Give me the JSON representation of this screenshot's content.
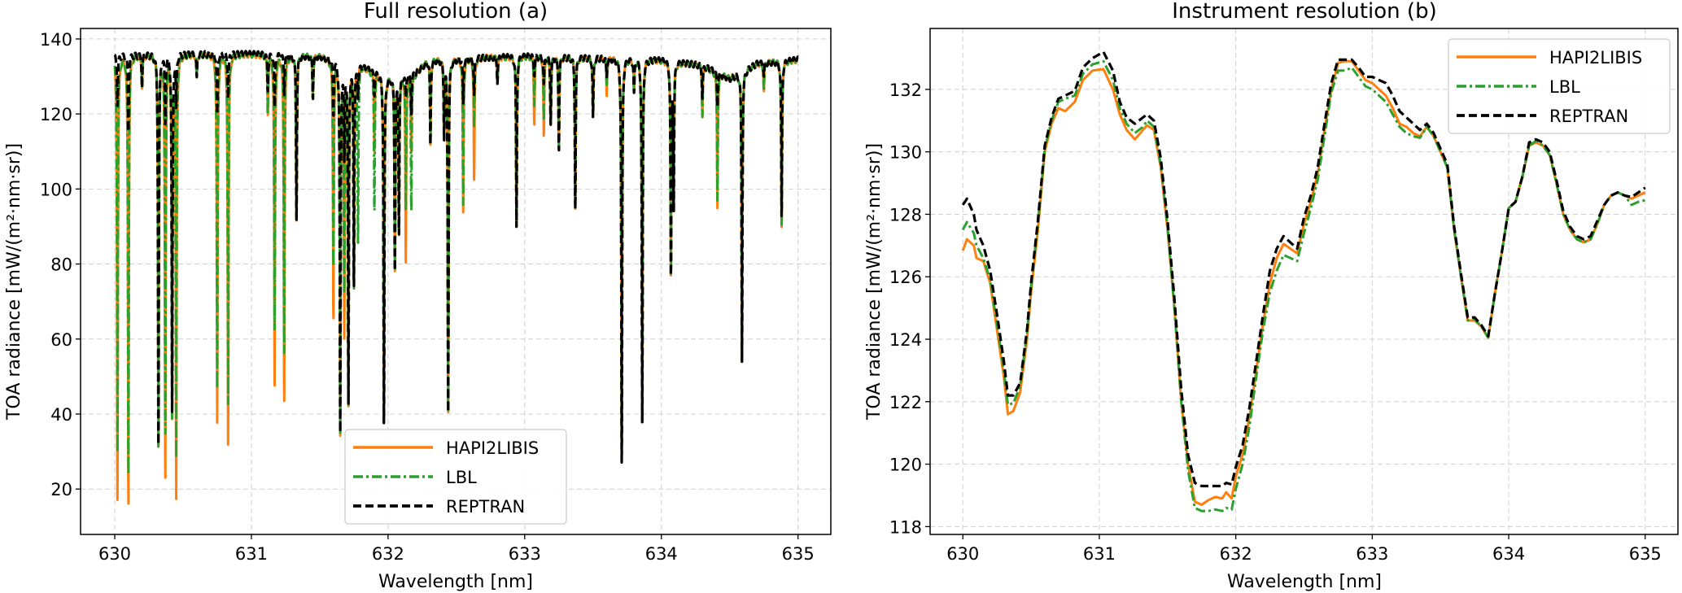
{
  "colors": {
    "HAPI2LIBIS": "#ff7f0e",
    "LBL": "#2ca02c",
    "REPTRAN": "#000000"
  },
  "chart_data": [
    {
      "type": "line",
      "title": "Full resolution (a)",
      "xlabel": "Wavelength [nm]",
      "ylabel": "TOA radiance [mW/(m²·nm·sr)]",
      "xlim": [
        629.75,
        635.24
      ],
      "ylim": [
        7.9,
        142.8
      ],
      "xticks": [
        630,
        631,
        632,
        633,
        634,
        635
      ],
      "yticks": [
        20,
        40,
        60,
        80,
        100,
        120,
        140
      ],
      "grid": true,
      "legend": {
        "placement": "lower-center",
        "entries": [
          "HAPI2LIBIS",
          "LBL",
          "REPTRAN"
        ]
      },
      "continuum": {
        "x": [
          630.0,
          630.3,
          630.5,
          631.0,
          631.5,
          631.8,
          632.0,
          632.2,
          632.3,
          633.0,
          633.5,
          634.0,
          634.3,
          634.5,
          634.7,
          635.0
        ],
        "y": [
          135.5,
          136,
          136,
          136,
          135.5,
          133,
          130,
          131,
          134.5,
          135.5,
          135,
          134.5,
          133,
          129.5,
          133.5,
          134.5
        ]
      },
      "absorption_lines": {
        "columns": [
          "wavelength",
          "HAPI2LIBIS_min",
          "LBL_min",
          "REPTRAN_min"
        ],
        "rows": [
          [
            630.02,
            15,
            28,
            122
          ],
          [
            630.1,
            14,
            22,
            115
          ],
          [
            630.2,
            127,
            127,
            127
          ],
          [
            630.32,
            30,
            30,
            30
          ],
          [
            630.37,
            22,
            34,
            118
          ],
          [
            630.42,
            41,
            41,
            41
          ],
          [
            630.45,
            19,
            30,
            123
          ],
          [
            630.6,
            130,
            130,
            130
          ],
          [
            630.75,
            38,
            47,
            120
          ],
          [
            630.83,
            30,
            41,
            124
          ],
          [
            631.12,
            120,
            120,
            126
          ],
          [
            631.17,
            48,
            63,
            122
          ],
          [
            631.24,
            42,
            55,
            125
          ],
          [
            631.33,
            91,
            91,
            91
          ],
          [
            631.45,
            124,
            124,
            124
          ],
          [
            631.6,
            65,
            79,
            120
          ],
          [
            631.65,
            36,
            36,
            36
          ],
          [
            631.68,
            63,
            75,
            110
          ],
          [
            631.71,
            44,
            44,
            44
          ],
          [
            631.75,
            74,
            74,
            74
          ],
          [
            631.78,
            125,
            86,
            125
          ],
          [
            631.9,
            110,
            94,
            125
          ],
          [
            631.97,
            36,
            36,
            36
          ],
          [
            632.05,
            78,
            78,
            78
          ],
          [
            632.08,
            88,
            88,
            88
          ],
          [
            632.13,
            81,
            95,
            125
          ],
          [
            632.17,
            110,
            94,
            120
          ],
          [
            632.31,
            112,
            112,
            112
          ],
          [
            632.41,
            114,
            114,
            114
          ],
          [
            632.44,
            39,
            39,
            39
          ],
          [
            632.55,
            94,
            96,
            123
          ],
          [
            632.63,
            102,
            116,
            125
          ],
          [
            632.8,
            128,
            128,
            128
          ],
          [
            632.94,
            90,
            90,
            90
          ],
          [
            633.07,
            117,
            122,
            130
          ],
          [
            633.14,
            114,
            118,
            128
          ],
          [
            633.19,
            117,
            117,
            117
          ],
          [
            633.25,
            110,
            110,
            110
          ],
          [
            633.37,
            94,
            94,
            94
          ],
          [
            633.5,
            119,
            119,
            119
          ],
          [
            633.6,
            125,
            128,
            130
          ],
          [
            633.71,
            25,
            25,
            25
          ],
          [
            633.8,
            126,
            126,
            126
          ],
          [
            633.86,
            36,
            36,
            36
          ],
          [
            634.07,
            77,
            77,
            77
          ],
          [
            634.09,
            95,
            95,
            95
          ],
          [
            634.3,
            119,
            119,
            124
          ],
          [
            634.41,
            95,
            97,
            122
          ],
          [
            634.59,
            54,
            54,
            54
          ],
          [
            634.75,
            126,
            126,
            130
          ],
          [
            634.88,
            89,
            89,
            92
          ]
        ]
      }
    },
    {
      "type": "line",
      "title": "Instrument resolution (b)",
      "xlabel": "Wavelength [nm]",
      "ylabel": "TOA radiance [mW/(m²·nm·sr)]",
      "xlim": [
        629.76,
        635.24
      ],
      "ylim": [
        117.75,
        133.95
      ],
      "xticks": [
        630,
        631,
        632,
        633,
        634,
        635
      ],
      "yticks": [
        118,
        120,
        122,
        124,
        126,
        128,
        130,
        132
      ],
      "grid": true,
      "legend": {
        "placement": "top-right",
        "entries": [
          "HAPI2LIBIS",
          "LBL",
          "REPTRAN"
        ]
      },
      "x": [
        630.0,
        630.03,
        630.08,
        630.1,
        630.15,
        630.2,
        630.25,
        630.3,
        630.33,
        630.37,
        630.42,
        630.47,
        630.5,
        630.55,
        630.6,
        630.65,
        630.7,
        630.75,
        630.82,
        630.88,
        630.95,
        631.03,
        631.1,
        631.15,
        631.2,
        631.26,
        631.32,
        631.35,
        631.4,
        631.45,
        631.5,
        631.55,
        631.6,
        631.65,
        631.7,
        631.75,
        631.8,
        631.85,
        631.9,
        631.93,
        631.97,
        632.0,
        632.05,
        632.1,
        632.15,
        632.2,
        632.25,
        632.3,
        632.35,
        632.4,
        632.45,
        632.5,
        632.55,
        632.6,
        632.65,
        632.7,
        632.75,
        632.8,
        632.85,
        632.9,
        632.95,
        633.0,
        633.05,
        633.1,
        633.15,
        633.2,
        633.25,
        633.3,
        633.35,
        633.4,
        633.45,
        633.5,
        633.55,
        633.6,
        633.65,
        633.7,
        633.75,
        633.8,
        633.85,
        633.9,
        633.95,
        634.0,
        634.05,
        634.1,
        634.15,
        634.2,
        634.25,
        634.3,
        634.35,
        634.4,
        634.45,
        634.5,
        634.55,
        634.6,
        634.65,
        634.7,
        634.75,
        634.8,
        634.85,
        634.9,
        634.95,
        635.0
      ],
      "series": [
        {
          "name": "HAPI2LIBIS",
          "values": [
            126.84,
            127.2,
            127.0,
            126.6,
            126.5,
            125.8,
            124.3,
            122.8,
            121.6,
            121.7,
            122.3,
            124.0,
            125.5,
            127.5,
            130.0,
            130.9,
            131.4,
            131.3,
            131.6,
            132.3,
            132.6,
            132.65,
            132.0,
            131.2,
            130.7,
            130.4,
            130.7,
            130.85,
            130.7,
            129.5,
            127.5,
            125.0,
            122.0,
            120.0,
            118.8,
            118.7,
            118.85,
            118.95,
            118.9,
            119.1,
            118.9,
            119.6,
            120.3,
            121.5,
            123.0,
            124.5,
            125.8,
            126.6,
            127.05,
            126.9,
            126.75,
            127.7,
            128.4,
            129.3,
            130.7,
            132.0,
            132.85,
            132.9,
            132.9,
            132.6,
            132.3,
            132.2,
            132.0,
            131.8,
            131.4,
            130.9,
            130.8,
            130.6,
            130.5,
            130.8,
            130.5,
            130.0,
            129.5,
            127.5,
            126.0,
            124.6,
            124.6,
            124.4,
            124.05,
            125.5,
            126.8,
            128.2,
            128.4,
            129.2,
            130.2,
            130.3,
            130.2,
            129.9,
            129.0,
            128.0,
            127.5,
            127.2,
            127.1,
            127.2,
            127.7,
            128.3,
            128.6,
            128.7,
            128.6,
            128.5,
            128.6,
            128.7
          ]
        },
        {
          "name": "LBL",
          "values": [
            127.5,
            127.75,
            127.4,
            127.0,
            126.6,
            125.9,
            124.5,
            123.0,
            121.9,
            121.95,
            122.5,
            124.2,
            125.7,
            127.7,
            130.1,
            131.0,
            131.6,
            131.7,
            131.8,
            132.5,
            132.8,
            132.9,
            132.3,
            131.4,
            130.9,
            130.6,
            130.8,
            131.0,
            130.8,
            129.6,
            127.6,
            125.0,
            122.0,
            119.8,
            118.6,
            118.5,
            118.5,
            118.55,
            118.5,
            118.6,
            118.55,
            119.2,
            120.0,
            121.2,
            122.8,
            124.3,
            125.5,
            126.2,
            126.7,
            126.6,
            126.5,
            127.4,
            128.2,
            129.1,
            130.5,
            131.9,
            132.6,
            132.6,
            132.7,
            132.4,
            132.1,
            132.0,
            131.8,
            131.6,
            131.2,
            130.8,
            130.6,
            130.5,
            130.45,
            130.8,
            130.5,
            130.0,
            129.5,
            127.5,
            126.0,
            124.6,
            124.65,
            124.4,
            124.05,
            125.5,
            126.8,
            128.2,
            128.4,
            129.2,
            130.2,
            130.35,
            130.2,
            129.9,
            129.0,
            128.0,
            127.5,
            127.2,
            127.1,
            127.2,
            127.7,
            128.3,
            128.6,
            128.7,
            128.6,
            128.3,
            128.4,
            128.45
          ]
        },
        {
          "name": "REPTRAN",
          "values": [
            128.3,
            128.5,
            128.0,
            127.5,
            127.0,
            126.2,
            124.8,
            123.3,
            122.2,
            122.2,
            122.6,
            124.3,
            125.8,
            127.8,
            130.2,
            131.1,
            131.7,
            131.8,
            131.95,
            132.7,
            133.0,
            133.2,
            132.6,
            131.6,
            131.1,
            130.9,
            131.1,
            131.2,
            131.0,
            129.8,
            127.8,
            125.3,
            122.4,
            120.3,
            119.4,
            119.3,
            119.3,
            119.3,
            119.3,
            119.4,
            119.35,
            119.9,
            120.6,
            121.8,
            123.3,
            124.8,
            126.2,
            126.9,
            127.3,
            127.1,
            126.9,
            127.9,
            128.6,
            129.5,
            130.9,
            132.2,
            132.95,
            132.95,
            132.95,
            132.7,
            132.4,
            132.4,
            132.3,
            132.2,
            131.8,
            131.3,
            131.1,
            130.9,
            130.7,
            130.9,
            130.6,
            130.1,
            129.6,
            127.6,
            126.1,
            124.7,
            124.7,
            124.45,
            124.1,
            125.5,
            126.8,
            128.2,
            128.4,
            129.2,
            130.3,
            130.4,
            130.3,
            130.0,
            129.1,
            128.1,
            127.6,
            127.3,
            127.2,
            127.3,
            127.8,
            128.3,
            128.6,
            128.7,
            128.6,
            128.55,
            128.7,
            128.85
          ]
        }
      ]
    }
  ]
}
